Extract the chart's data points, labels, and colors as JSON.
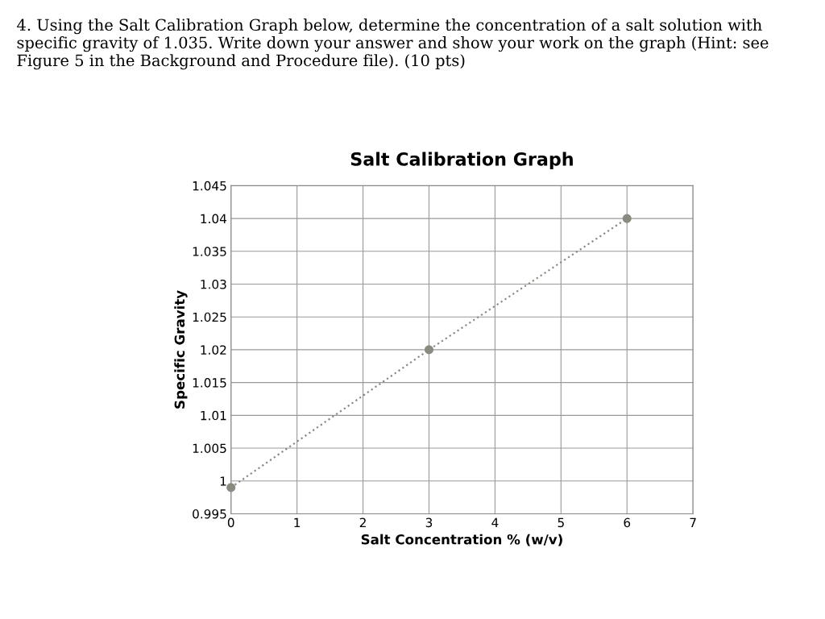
{
  "chart_data": {
    "type": "line",
    "title": "Salt Calibration Graph",
    "xlabel": "Salt Concentration % (w/v)",
    "ylabel": "Specific Gravity",
    "annotations": [
      "4. Using the Salt Calibration Graph below, determine the concentration of a salt solution with specific gravity of 1.035. Write down your answer and show your work on the graph (Hint: see Figure 5 in the Background and Procedure file). (10 pts)"
    ],
    "x": [
      0,
      3,
      6
    ],
    "series": [
      {
        "color": "#8a8a80",
        "values": [
          0.999,
          1.02,
          1.04
        ]
      }
    ],
    "xlim": [
      0,
      7
    ],
    "xticks": [
      0,
      1,
      2,
      3,
      4,
      5,
      6,
      7
    ],
    "ylim": [
      0.995,
      1.045
    ],
    "yticks": [
      0.995,
      1,
      1.005,
      1.01,
      1.015,
      1.02,
      1.025,
      1.03,
      1.035,
      1.04,
      1.045
    ],
    "grid": true,
    "marker": "circle",
    "line_style": "dotted",
    "legend": false
  }
}
